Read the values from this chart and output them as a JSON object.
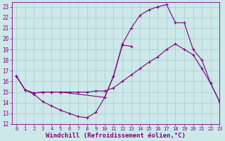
{
  "background_color": "#cce8e8",
  "line_color": "#800080",
  "grid_color": "#aacccc",
  "xlabel": "Windchill (Refroidissement éolien,°C)",
  "xlabel_fontsize": 6.5,
  "xlim": [
    -0.5,
    23
  ],
  "ylim": [
    12,
    23.4
  ],
  "yticks": [
    12,
    13,
    14,
    15,
    16,
    17,
    18,
    19,
    20,
    21,
    22,
    23
  ],
  "xticks": [
    0,
    1,
    2,
    3,
    4,
    5,
    6,
    7,
    8,
    9,
    10,
    11,
    12,
    13,
    14,
    15,
    16,
    17,
    18,
    19,
    20,
    21,
    22,
    23
  ],
  "line1_x": [
    0,
    1,
    2,
    3,
    4,
    5,
    6,
    7,
    8,
    9,
    10,
    11,
    12,
    13
  ],
  "line1_y": [
    16.5,
    15.2,
    14.8,
    14.1,
    13.7,
    13.3,
    13.0,
    12.7,
    12.6,
    13.1,
    14.5,
    16.5,
    19.4,
    19.3
  ],
  "line2_x": [
    0,
    1,
    2,
    3,
    4,
    5,
    6,
    7,
    8,
    9,
    10,
    11,
    12,
    13,
    14,
    15,
    16,
    17,
    18,
    19,
    20,
    21,
    22,
    23
  ],
  "line2_y": [
    16.5,
    15.2,
    14.9,
    15.0,
    15.0,
    15.0,
    15.0,
    15.0,
    15.0,
    15.1,
    15.1,
    15.4,
    16.0,
    16.6,
    17.2,
    17.8,
    18.3,
    19.0,
    19.5,
    19.0,
    18.5,
    17.2,
    15.8,
    14.1
  ],
  "line3_x": [
    0,
    1,
    2,
    3,
    4,
    5,
    10,
    11,
    12,
    13,
    14,
    15,
    16,
    17,
    18,
    19,
    20,
    21,
    22,
    23
  ],
  "line3_y": [
    16.5,
    15.2,
    14.9,
    15.0,
    15.0,
    15.0,
    14.5,
    16.5,
    19.5,
    21.0,
    22.2,
    22.7,
    23.0,
    23.2,
    21.5,
    21.5,
    19.0,
    18.0,
    15.8,
    14.1
  ]
}
